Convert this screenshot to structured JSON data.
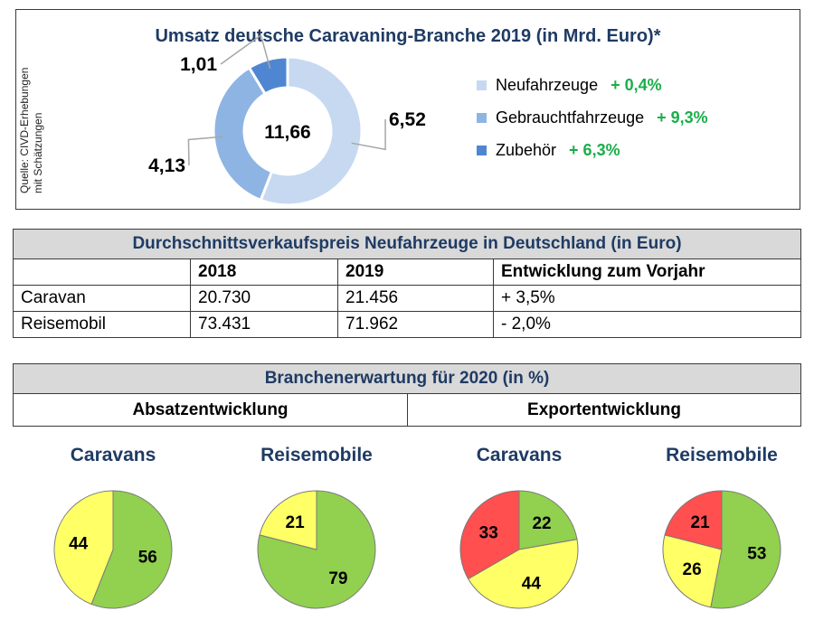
{
  "donut": {
    "title": "Umsatz deutsche Caravaning-Branche 2019 (in Mrd. Euro)*",
    "source": [
      "Quelle: CIVD-Erhebungen",
      "mit Schätzungen"
    ],
    "total_label": "11,66"
  },
  "price_table": {
    "title": "Durchschnittsverkaufspreis Neufahrzeuge in Deutschland (in Euro)",
    "headers": [
      "",
      "2018",
      "2019",
      "Entwicklung zum Vorjahr"
    ],
    "rows": [
      [
        "Caravan",
        "20.730",
        "21.456",
        "+ 3,5%"
      ],
      [
        "Reisemobil",
        "73.431",
        "71.962",
        "- 2,0%"
      ]
    ]
  },
  "expectation": {
    "title": "Branchenerwartung für 2020 (in %)",
    "left_header": "Absatzentwicklung",
    "right_header": "Exportentwicklung"
  },
  "colors": {
    "neufahrzeuge": "#c6d9f1",
    "gebrauchtfahrzeuge": "#8eb4e3",
    "zubehoer": "#4f86d2",
    "green": "#92d050",
    "yellow": "#ffff66",
    "red": "#ff4f4f",
    "growth_text": "#1aae4a"
  },
  "chart_data": [
    {
      "type": "pie",
      "title": "Umsatz deutsche Caravaning-Branche 2019 (in Mrd. Euro)*",
      "variant": "donut",
      "categories": [
        "Neufahrzeuge",
        "Gebrauchtfahrzeuge",
        "Zubehör"
      ],
      "values": [
        6.52,
        4.13,
        1.01
      ],
      "value_labels": [
        "6,52",
        "4,13",
        "1,01"
      ],
      "growth": [
        "+ 0,4%",
        "+ 9,3%",
        "+ 6,3%"
      ],
      "colors": [
        "#c6d9f1",
        "#8eb4e3",
        "#4f86d2"
      ],
      "legend": "right"
    },
    {
      "type": "pie",
      "title": "Caravans",
      "group": "Absatzentwicklung",
      "values": [
        56,
        44
      ],
      "colors": [
        "#92d050",
        "#ffff66"
      ]
    },
    {
      "type": "pie",
      "title": "Reisemobile",
      "group": "Absatzentwicklung",
      "values": [
        79,
        21
      ],
      "colors": [
        "#92d050",
        "#ffff66"
      ]
    },
    {
      "type": "pie",
      "title": "Caravans",
      "group": "Exportentwicklung",
      "values": [
        22,
        44,
        33
      ],
      "colors": [
        "#92d050",
        "#ffff66",
        "#ff4f4f"
      ]
    },
    {
      "type": "pie",
      "title": "Reisemobile",
      "group": "Exportentwicklung",
      "values": [
        53,
        26,
        21
      ],
      "colors": [
        "#92d050",
        "#ffff66",
        "#ff4f4f"
      ]
    }
  ]
}
